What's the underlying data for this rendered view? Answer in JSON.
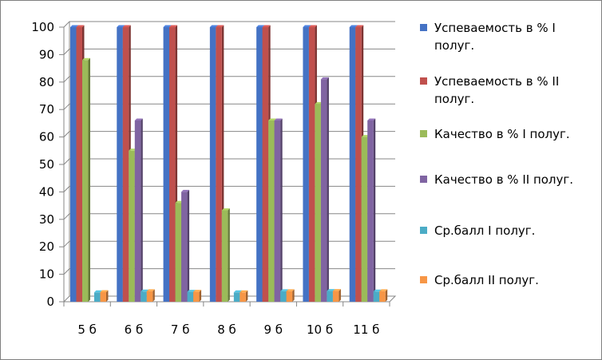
{
  "chart_data": {
    "type": "bar",
    "title": "",
    "xlabel": "",
    "ylabel": "",
    "ylim": [
      0,
      100
    ],
    "yticks": [
      0,
      10,
      20,
      30,
      40,
      50,
      60,
      70,
      80,
      90,
      100
    ],
    "grid": true,
    "legend_position": "right",
    "categories": [
      "5 б",
      "6 б",
      "7 б",
      "8 б",
      "9 б",
      "10 б",
      "11 б"
    ],
    "series": [
      {
        "name": "Успеваемость в % I полуг.",
        "legend_lines": [
          "Успеваемость в % I",
          "полуг."
        ],
        "color": "#4472C4",
        "values": [
          100,
          100,
          100,
          100,
          100,
          100,
          100
        ]
      },
      {
        "name": "Успеваемость в % II полуг.",
        "legend_lines": [
          "Успеваемость в % II",
          "полуг."
        ],
        "color": "#C0504D",
        "values": [
          100,
          100,
          100,
          100,
          100,
          100,
          100
        ]
      },
      {
        "name": "Качество в % I полуг.",
        "legend_lines": [
          "Качество в % I полуг."
        ],
        "color": "#9BBB59",
        "values": [
          88,
          55,
          36,
          33.3,
          66,
          72,
          60
        ]
      },
      {
        "name": "Качество в % II полуг.",
        "legend_lines": [
          "Качество в % II полуг."
        ],
        "color": "#8064A2",
        "values": [
          0,
          66,
          40,
          0,
          66,
          81,
          66
        ]
      },
      {
        "name": "Ср.балл I полуг.",
        "legend_lines": [
          "Ср.балл I полуг."
        ],
        "color": "#4BACC6",
        "values": [
          3.4,
          3.7,
          3.6,
          3.4,
          3.8,
          3.9,
          3.7
        ]
      },
      {
        "name": "Ср.балл II полуг.",
        "legend_lines": [
          "Ср.балл II полуг."
        ],
        "color": "#F79646",
        "values": [
          3.5,
          3.8,
          3.6,
          3.4,
          3.8,
          3.9,
          3.8
        ]
      }
    ]
  }
}
